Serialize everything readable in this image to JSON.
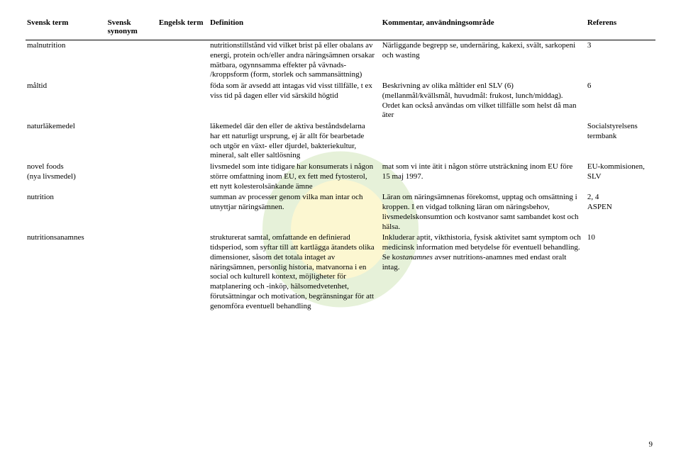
{
  "watermark": {
    "outer_color": "#9ec96a",
    "inner_color": "#f6e04b",
    "radius_outer": 110,
    "radius_inner": 70
  },
  "page_number": "9",
  "headers": {
    "term_sv": "Svensk term",
    "synonym_sv": "Svensk synonym",
    "term_en": "Engelsk term",
    "definition": "Definition",
    "comment": "Kommentar, användningsområde",
    "reference": "Referens"
  },
  "rows": [
    {
      "term_sv": "malnutrition",
      "synonym_sv": "",
      "term_en": "",
      "definition": "nutritionstillstånd vid vilket brist på eller obalans av energi, protein och/eller andra näringsämnen orsakar mätbara, ogynnsamma effekter på vävnads- /kroppsform (form, storlek och sammansättning)",
      "comment": "Närliggande begrepp se, undernäring, kakexi, svält, sarkopeni och wasting",
      "reference": "3"
    },
    {
      "term_sv": "måltid",
      "synonym_sv": "",
      "term_en": "",
      "definition": "föda som är avsedd att intagas vid visst tillfälle, t ex viss tid på dagen eller vid särskild högtid",
      "comment": "Beskrivning av olika måltider enl SLV (6) (mellanmål/kvällsmål, huvudmål: frukost, lunch/middag). Ordet kan också användas om vilket tillfälle som helst då man äter",
      "reference": "6"
    },
    {
      "term_sv": "naturläkemedel",
      "synonym_sv": "",
      "term_en": "",
      "definition": "läkemedel där den eller de aktiva beståndsdelarna har ett naturligt ursprung, ej är allt för bearbetade och utgör en växt- eller djurdel, bakteriekultur, mineral, salt eller saltlösning",
      "comment": "",
      "reference": "Socialstyrelsens termbank"
    },
    {
      "term_sv": "novel foods\n(nya livsmedel)",
      "synonym_sv": "",
      "term_en": "",
      "definition": "livsmedel som inte tidigare har konsumerats i någon större omfattning inom EU, ex fett med fytosterol, ett nytt kolesterolsänkande ämne",
      "comment": "mat som vi inte ätit i någon större utsträckning inom EU före 15 maj 1997.",
      "reference": "EU-kommisionen, SLV"
    },
    {
      "term_sv": "nutrition",
      "synonym_sv": "",
      "term_en": "",
      "definition": "summan av processer genom vilka man intar och utnyttjar näringsämnen.",
      "comment": "Läran om näringsämnenas förekomst, upptag och omsättning i kroppen. I en vidgad tolkning läran om näringsbehov, livsmedelskonsumtion och kostvanor samt sambandet kost och hälsa.",
      "reference": "2, 4\nASPEN"
    },
    {
      "term_sv": "nutritionsanamnes",
      "synonym_sv": "",
      "term_en": "",
      "definition": "strukturerat samtal, omfattande en definierad tidsperiod, som syftar till att kartlägga ätandets olika dimensioner, såsom det totala intaget av näringsämnen, personlig historia, matvanorna i en social och kulturell kontext, möjligheter för matplanering och -inköp, hälsomedvetenhet, förutsättningar och motivation, begränsningar för att genomföra eventuell behandling",
      "comment_html": "Inkluderar aptit, vikthistoria, fysisk aktivitet samt symptom och medicinsk information med betydelse för eventuell behandling. Se k<span class=\"italic\">ostanamnes</span> avser nutritions-anamnes med endast oralt intag.",
      "reference": "10"
    }
  ]
}
